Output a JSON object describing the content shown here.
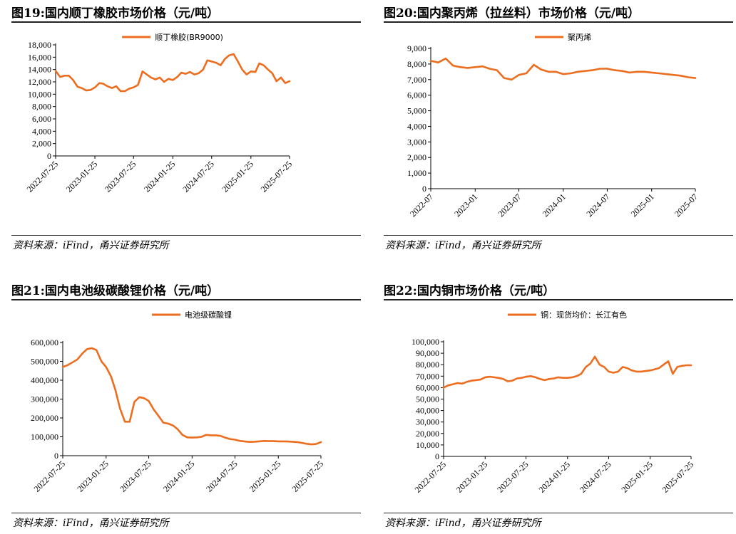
{
  "panels": [
    {
      "id": "p19",
      "title": "图19:国内顺丁橡胶市场价格（元/吨）",
      "source": "资料来源：iFind，甬兴证券研究所"
    },
    {
      "id": "p20",
      "title": "图20:国内聚丙烯（拉丝料）市场价格（元/吨）",
      "source": "资料来源：iFind，甬兴证券研究所"
    },
    {
      "id": "p21",
      "title": "图21:国内电池级碳酸锂价格（元/吨）",
      "source": "资料来源：iFind，甬兴证券研究所"
    },
    {
      "id": "p22",
      "title": "图22:国内铜市场价格（元/吨）",
      "source": "资料来源：iFind，甬兴证券研究所"
    }
  ],
  "chart_data": [
    {
      "type": "line",
      "color": "#ED6D1F",
      "legend_position": "top-center",
      "grid": false,
      "series": [
        {
          "name": "顺丁橡胶(BR9000)",
          "x": [
            "2022-07-25",
            "2022-08-15",
            "2022-09-05",
            "2022-09-25",
            "2022-10-15",
            "2022-11-05",
            "2022-11-25",
            "2022-12-15",
            "2023-01-05",
            "2023-01-25",
            "2023-02-15",
            "2023-03-05",
            "2023-03-25",
            "2023-04-15",
            "2023-05-05",
            "2023-05-25",
            "2023-06-15",
            "2023-07-05",
            "2023-07-25",
            "2023-08-15",
            "2023-09-05",
            "2023-09-25",
            "2023-10-15",
            "2023-11-05",
            "2023-11-25",
            "2023-12-15",
            "2024-01-05",
            "2024-01-25",
            "2024-02-15",
            "2024-03-05",
            "2024-03-25",
            "2024-04-15",
            "2024-05-05",
            "2024-05-25",
            "2024-06-15",
            "2024-07-05",
            "2024-07-25",
            "2024-08-15",
            "2024-09-05",
            "2024-09-25",
            "2024-10-15",
            "2024-11-05",
            "2024-11-25",
            "2024-12-15",
            "2025-01-05",
            "2025-01-25",
            "2025-02-15",
            "2025-03-05",
            "2025-03-25",
            "2025-04-15",
            "2025-05-05",
            "2025-05-25",
            "2025-06-15",
            "2025-07-05",
            "2025-07-25"
          ],
          "values": [
            13800,
            12800,
            13000,
            13000,
            12300,
            11200,
            11000,
            10600,
            10700,
            11100,
            11800,
            11700,
            11300,
            11000,
            11300,
            10500,
            10500,
            10900,
            11100,
            11500,
            13700,
            13200,
            12700,
            12400,
            12700,
            12000,
            12500,
            12300,
            12800,
            13500,
            13300,
            13600,
            13200,
            13400,
            14000,
            15500,
            15300,
            15100,
            14700,
            15700,
            16300,
            16500,
            15300,
            14000,
            13200,
            13700,
            13600,
            15000,
            14700,
            14000,
            13400,
            12100,
            12700,
            11800,
            12100
          ]
        }
      ],
      "x_ticks": [
        "2022-07-25",
        "2023-01-25",
        "2023-07-25",
        "2024-01-25",
        "2024-07-25",
        "2025-01-25",
        "2025-07-25"
      ],
      "y_ticks": [
        "0",
        "2,000",
        "4,000",
        "6,000",
        "8,000",
        "10,000",
        "12,000",
        "14,000",
        "16,000",
        "18,000"
      ],
      "ylim": [
        0,
        18000
      ]
    },
    {
      "type": "line",
      "color": "#ED6D1F",
      "legend_position": "top-center",
      "grid": false,
      "series": [
        {
          "name": "聚丙烯",
          "x": [
            "2022-07",
            "2022-08",
            "2022-09",
            "2022-10",
            "2022-11",
            "2022-12",
            "2023-01",
            "2023-02",
            "2023-03",
            "2023-04",
            "2023-05",
            "2023-06",
            "2023-07",
            "2023-08",
            "2023-09",
            "2023-10",
            "2023-11",
            "2023-12",
            "2024-01",
            "2024-02",
            "2024-03",
            "2024-04",
            "2024-05",
            "2024-06",
            "2024-07",
            "2024-08",
            "2024-09",
            "2024-10",
            "2024-11",
            "2024-12",
            "2025-01",
            "2025-02",
            "2025-03",
            "2025-04",
            "2025-05",
            "2025-06",
            "2025-07"
          ],
          "values": [
            8200,
            8100,
            8350,
            7900,
            7800,
            7750,
            7800,
            7850,
            7700,
            7600,
            7100,
            7000,
            7300,
            7400,
            7950,
            7650,
            7500,
            7500,
            7350,
            7400,
            7500,
            7550,
            7600,
            7700,
            7700,
            7600,
            7550,
            7450,
            7500,
            7500,
            7450,
            7400,
            7350,
            7300,
            7250,
            7150,
            7100
          ]
        }
      ],
      "x_ticks": [
        "2022-07",
        "2023-01",
        "2023-07",
        "2024-01",
        "2024-07",
        "2025-01",
        "2025-07"
      ],
      "y_ticks": [
        "0",
        "1,000",
        "2,000",
        "3,000",
        "4,000",
        "5,000",
        "6,000",
        "7,000",
        "8,000",
        "9,000"
      ],
      "ylim": [
        0,
        9000
      ]
    },
    {
      "type": "line",
      "color": "#ED6D1F",
      "legend_position": "top-center",
      "grid": false,
      "series": [
        {
          "name": "电池级碳酸锂",
          "x": [
            "2022-07-25",
            "2022-08-15",
            "2022-09-05",
            "2022-09-25",
            "2022-10-15",
            "2022-11-05",
            "2022-11-25",
            "2022-12-15",
            "2023-01-05",
            "2023-01-25",
            "2023-02-15",
            "2023-03-05",
            "2023-03-25",
            "2023-04-15",
            "2023-05-05",
            "2023-05-25",
            "2023-06-15",
            "2023-07-05",
            "2023-07-25",
            "2023-08-15",
            "2023-09-05",
            "2023-09-25",
            "2023-10-15",
            "2023-11-05",
            "2023-11-25",
            "2023-12-15",
            "2024-01-05",
            "2024-01-25",
            "2024-02-15",
            "2024-03-05",
            "2024-03-25",
            "2024-04-15",
            "2024-05-05",
            "2024-05-25",
            "2024-06-15",
            "2024-07-05",
            "2024-07-25",
            "2024-08-15",
            "2024-09-05",
            "2024-09-25",
            "2024-10-15",
            "2024-11-05",
            "2024-11-25",
            "2024-12-15",
            "2025-01-05",
            "2025-01-25",
            "2025-02-15",
            "2025-03-05",
            "2025-03-25",
            "2025-04-15",
            "2025-05-05",
            "2025-05-25",
            "2025-06-15",
            "2025-07-05",
            "2025-07-25"
          ],
          "values": [
            470000,
            480000,
            495000,
            510000,
            540000,
            565000,
            570000,
            560000,
            500000,
            470000,
            420000,
            350000,
            250000,
            180000,
            180000,
            285000,
            310000,
            305000,
            290000,
            245000,
            210000,
            175000,
            170000,
            160000,
            140000,
            110000,
            97000,
            96000,
            97000,
            100000,
            110000,
            108000,
            108000,
            105000,
            95000,
            88000,
            85000,
            78000,
            75000,
            73000,
            74000,
            76000,
            78000,
            77000,
            77000,
            76000,
            76000,
            75000,
            74000,
            72000,
            68000,
            63000,
            60000,
            62000,
            72000
          ]
        }
      ],
      "x_ticks": [
        "2022-07-25",
        "2023-01-25",
        "2023-07-25",
        "2024-01-25",
        "2024-07-25",
        "2025-01-25",
        "2025-07-25"
      ],
      "y_ticks": [
        "0",
        "100,000",
        "200,000",
        "300,000",
        "400,000",
        "500,000",
        "600,000"
      ],
      "ylim": [
        0,
        600000
      ]
    },
    {
      "type": "line",
      "color": "#ED6D1F",
      "legend_position": "top-center",
      "grid": false,
      "series": [
        {
          "name": "铜：现货均价：长江有色",
          "x": [
            "2022-07-25",
            "2022-08-15",
            "2022-09-05",
            "2022-09-25",
            "2022-10-15",
            "2022-11-05",
            "2022-11-25",
            "2022-12-15",
            "2023-01-05",
            "2023-01-25",
            "2023-02-15",
            "2023-03-05",
            "2023-03-25",
            "2023-04-15",
            "2023-05-05",
            "2023-05-25",
            "2023-06-15",
            "2023-07-05",
            "2023-07-25",
            "2023-08-15",
            "2023-09-05",
            "2023-09-25",
            "2023-10-15",
            "2023-11-05",
            "2023-11-25",
            "2023-12-15",
            "2024-01-05",
            "2024-01-25",
            "2024-02-15",
            "2024-03-05",
            "2024-03-25",
            "2024-04-15",
            "2024-05-05",
            "2024-05-25",
            "2024-06-15",
            "2024-07-05",
            "2024-07-25",
            "2024-08-15",
            "2024-09-05",
            "2024-09-25",
            "2024-10-15",
            "2024-11-05",
            "2024-11-25",
            "2024-12-15",
            "2025-01-05",
            "2025-01-25",
            "2025-02-15",
            "2025-03-05",
            "2025-03-25",
            "2025-04-15",
            "2025-05-05",
            "2025-05-25",
            "2025-06-15",
            "2025-07-05",
            "2025-07-25"
          ],
          "values": [
            60000,
            62000,
            63000,
            64000,
            63500,
            65000,
            66000,
            66500,
            67000,
            69000,
            69500,
            69000,
            68500,
            67500,
            65500,
            66000,
            68000,
            68500,
            69500,
            70000,
            69000,
            67500,
            66500,
            67500,
            68000,
            69000,
            68500,
            68500,
            69000,
            70000,
            72000,
            78000,
            81000,
            87000,
            80000,
            78000,
            74000,
            73000,
            74000,
            78000,
            77000,
            75000,
            74000,
            74000,
            74500,
            75000,
            76000,
            77000,
            80000,
            83000,
            72000,
            78000,
            79000,
            79500,
            79500
          ]
        }
      ],
      "x_ticks": [
        "2022-07-25",
        "2023-01-25",
        "2023-07-25",
        "2024-01-25",
        "2024-07-25",
        "2025-01-25",
        "2025-07-25"
      ],
      "y_ticks": [
        "0",
        "10,000",
        "20,000",
        "30,000",
        "40,000",
        "50,000",
        "60,000",
        "70,000",
        "80,000",
        "90,000",
        "100,000"
      ],
      "ylim": [
        0,
        100000
      ]
    }
  ]
}
